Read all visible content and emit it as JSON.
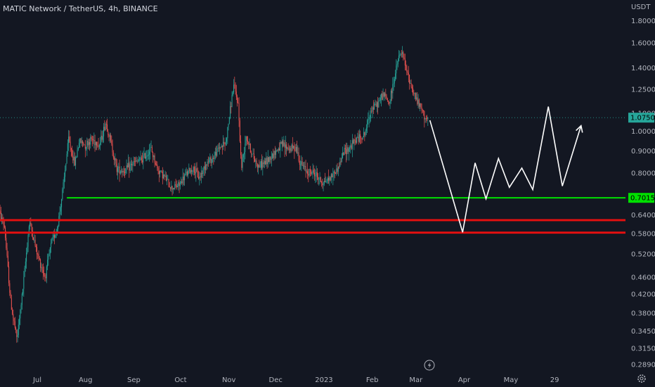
{
  "title": "MATIC Network / TetherUS, 4h, BINANCE",
  "axis_unit": "USDT",
  "colors": {
    "background": "#131722",
    "up": "#26a69a",
    "down": "#ef5350",
    "support": "#00e000",
    "resistance": "#e01010",
    "projection": "#ffffff",
    "price_tag": "#26a69a",
    "support_tag": "#00e000"
  },
  "chart_data": {
    "type": "candlestick",
    "y_scale": "log",
    "ylim": [
      0.28,
      1.9
    ],
    "y_ticks": [
      "1.8000",
      "1.6000",
      "1.4000",
      "1.2500",
      "1.1000",
      "1.0000",
      "0.9000",
      "0.8000",
      "0.7015",
      "0.6400",
      "0.5800",
      "0.5200",
      "0.4600",
      "0.4200",
      "0.3800",
      "0.3450",
      "0.3150",
      "0.2890"
    ],
    "x_ticks": [
      "Jul",
      "Aug",
      "Sep",
      "Oct",
      "Nov",
      "Dec",
      "2023",
      "Feb",
      "Mar",
      "Apr",
      "May",
      "29"
    ],
    "x_tick_dates": [
      "2022-07-01",
      "2022-08-01",
      "2022-09-01",
      "2022-10-01",
      "2022-11-01",
      "2022-12-01",
      "2023-01-01",
      "2023-02-01",
      "2023-03-01",
      "2023-04-01",
      "2023-05-01",
      "2023-05-29"
    ],
    "price_path": [
      [
        "2022-06-06",
        0.66
      ],
      [
        "2022-06-10",
        0.6
      ],
      [
        "2022-06-14",
        0.4
      ],
      [
        "2022-06-18",
        0.33
      ],
      [
        "2022-06-22",
        0.44
      ],
      [
        "2022-06-26",
        0.62
      ],
      [
        "2022-07-01",
        0.52
      ],
      [
        "2022-07-06",
        0.46
      ],
      [
        "2022-07-10",
        0.55
      ],
      [
        "2022-07-14",
        0.6
      ],
      [
        "2022-07-18",
        0.76
      ],
      [
        "2022-07-21",
        0.96
      ],
      [
        "2022-07-25",
        0.84
      ],
      [
        "2022-07-28",
        0.95
      ],
      [
        "2022-08-01",
        0.93
      ],
      [
        "2022-08-05",
        0.96
      ],
      [
        "2022-08-10",
        0.93
      ],
      [
        "2022-08-14",
        1.05
      ],
      [
        "2022-08-17",
        0.95
      ],
      [
        "2022-08-21",
        0.82
      ],
      [
        "2022-08-26",
        0.81
      ],
      [
        "2022-08-31",
        0.84
      ],
      [
        "2022-09-06",
        0.86
      ],
      [
        "2022-09-12",
        0.91
      ],
      [
        "2022-09-16",
        0.82
      ],
      [
        "2022-09-20",
        0.79
      ],
      [
        "2022-09-25",
        0.74
      ],
      [
        "2022-09-30",
        0.75
      ],
      [
        "2022-10-05",
        0.8
      ],
      [
        "2022-10-09",
        0.82
      ],
      [
        "2022-10-13",
        0.78
      ],
      [
        "2022-10-17",
        0.84
      ],
      [
        "2022-10-22",
        0.87
      ],
      [
        "2022-10-26",
        0.92
      ],
      [
        "2022-10-30",
        0.94
      ],
      [
        "2022-11-04",
        1.28
      ],
      [
        "2022-11-07",
        1.15
      ],
      [
        "2022-11-09",
        0.82
      ],
      [
        "2022-11-12",
        0.98
      ],
      [
        "2022-11-16",
        0.88
      ],
      [
        "2022-11-20",
        0.83
      ],
      [
        "2022-11-25",
        0.85
      ],
      [
        "2022-11-30",
        0.89
      ],
      [
        "2022-12-05",
        0.93
      ],
      [
        "2022-12-10",
        0.91
      ],
      [
        "2022-12-14",
        0.92
      ],
      [
        "2022-12-17",
        0.84
      ],
      [
        "2022-12-21",
        0.81
      ],
      [
        "2022-12-26",
        0.8
      ],
      [
        "2022-12-31",
        0.76
      ],
      [
        "2023-01-05",
        0.78
      ],
      [
        "2023-01-10",
        0.82
      ],
      [
        "2023-01-14",
        0.9
      ],
      [
        "2023-01-18",
        0.92
      ],
      [
        "2023-01-22",
        0.96
      ],
      [
        "2023-01-27",
        0.98
      ],
      [
        "2023-01-31",
        1.12
      ],
      [
        "2023-02-04",
        1.15
      ],
      [
        "2023-02-08",
        1.22
      ],
      [
        "2023-02-12",
        1.16
      ],
      [
        "2023-02-15",
        1.32
      ],
      [
        "2023-02-18",
        1.48
      ],
      [
        "2023-02-20",
        1.52
      ],
      [
        "2023-02-23",
        1.38
      ],
      [
        "2023-02-27",
        1.24
      ],
      [
        "2023-03-03",
        1.15
      ],
      [
        "2023-03-07",
        1.08
      ],
      [
        "2023-03-09",
        1.06
      ]
    ],
    "current_price": "1.0750",
    "levels": [
      {
        "role": "support",
        "value": 0.7015,
        "label": "0.7015"
      },
      {
        "role": "resistance",
        "value": 0.623
      },
      {
        "role": "resistance",
        "value": 0.583
      }
    ],
    "projection": [
      [
        "2023-03-10",
        1.06
      ],
      [
        "2023-03-31",
        0.584
      ],
      [
        "2023-04-08",
        0.845
      ],
      [
        "2023-04-15",
        0.698
      ],
      [
        "2023-04-23",
        0.865
      ],
      [
        "2023-04-30",
        0.742
      ],
      [
        "2023-05-08",
        0.822
      ],
      [
        "2023-05-15",
        0.733
      ],
      [
        "2023-05-25",
        1.14
      ],
      [
        "2023-06-03",
        0.747
      ],
      [
        "2023-06-15",
        1.03
      ]
    ]
  }
}
